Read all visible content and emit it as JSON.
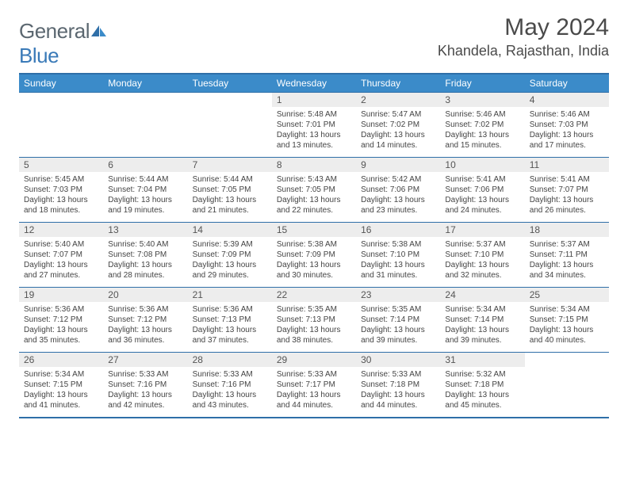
{
  "brand": {
    "part1": "General",
    "part2": "Blue"
  },
  "title": "May 2024",
  "location": "Khandela, Rajasthan, India",
  "colors": {
    "header_bg": "#3b8bc9",
    "border": "#2f6fa8",
    "daynum_bg": "#ededed",
    "text": "#333333",
    "logo_gray": "#5b6770",
    "logo_blue": "#3a7ab8"
  },
  "weekdays": [
    "Sunday",
    "Monday",
    "Tuesday",
    "Wednesday",
    "Thursday",
    "Friday",
    "Saturday"
  ],
  "weeks": [
    [
      {
        "blank": true
      },
      {
        "blank": true
      },
      {
        "blank": true
      },
      {
        "n": "1",
        "sr": "5:48 AM",
        "ss": "7:01 PM",
        "dl": "13 hours and 13 minutes."
      },
      {
        "n": "2",
        "sr": "5:47 AM",
        "ss": "7:02 PM",
        "dl": "13 hours and 14 minutes."
      },
      {
        "n": "3",
        "sr": "5:46 AM",
        "ss": "7:02 PM",
        "dl": "13 hours and 15 minutes."
      },
      {
        "n": "4",
        "sr": "5:46 AM",
        "ss": "7:03 PM",
        "dl": "13 hours and 17 minutes."
      }
    ],
    [
      {
        "n": "5",
        "sr": "5:45 AM",
        "ss": "7:03 PM",
        "dl": "13 hours and 18 minutes."
      },
      {
        "n": "6",
        "sr": "5:44 AM",
        "ss": "7:04 PM",
        "dl": "13 hours and 19 minutes."
      },
      {
        "n": "7",
        "sr": "5:44 AM",
        "ss": "7:05 PM",
        "dl": "13 hours and 21 minutes."
      },
      {
        "n": "8",
        "sr": "5:43 AM",
        "ss": "7:05 PM",
        "dl": "13 hours and 22 minutes."
      },
      {
        "n": "9",
        "sr": "5:42 AM",
        "ss": "7:06 PM",
        "dl": "13 hours and 23 minutes."
      },
      {
        "n": "10",
        "sr": "5:41 AM",
        "ss": "7:06 PM",
        "dl": "13 hours and 24 minutes."
      },
      {
        "n": "11",
        "sr": "5:41 AM",
        "ss": "7:07 PM",
        "dl": "13 hours and 26 minutes."
      }
    ],
    [
      {
        "n": "12",
        "sr": "5:40 AM",
        "ss": "7:07 PM",
        "dl": "13 hours and 27 minutes."
      },
      {
        "n": "13",
        "sr": "5:40 AM",
        "ss": "7:08 PM",
        "dl": "13 hours and 28 minutes."
      },
      {
        "n": "14",
        "sr": "5:39 AM",
        "ss": "7:09 PM",
        "dl": "13 hours and 29 minutes."
      },
      {
        "n": "15",
        "sr": "5:38 AM",
        "ss": "7:09 PM",
        "dl": "13 hours and 30 minutes."
      },
      {
        "n": "16",
        "sr": "5:38 AM",
        "ss": "7:10 PM",
        "dl": "13 hours and 31 minutes."
      },
      {
        "n": "17",
        "sr": "5:37 AM",
        "ss": "7:10 PM",
        "dl": "13 hours and 32 minutes."
      },
      {
        "n": "18",
        "sr": "5:37 AM",
        "ss": "7:11 PM",
        "dl": "13 hours and 34 minutes."
      }
    ],
    [
      {
        "n": "19",
        "sr": "5:36 AM",
        "ss": "7:12 PM",
        "dl": "13 hours and 35 minutes."
      },
      {
        "n": "20",
        "sr": "5:36 AM",
        "ss": "7:12 PM",
        "dl": "13 hours and 36 minutes."
      },
      {
        "n": "21",
        "sr": "5:36 AM",
        "ss": "7:13 PM",
        "dl": "13 hours and 37 minutes."
      },
      {
        "n": "22",
        "sr": "5:35 AM",
        "ss": "7:13 PM",
        "dl": "13 hours and 38 minutes."
      },
      {
        "n": "23",
        "sr": "5:35 AM",
        "ss": "7:14 PM",
        "dl": "13 hours and 39 minutes."
      },
      {
        "n": "24",
        "sr": "5:34 AM",
        "ss": "7:14 PM",
        "dl": "13 hours and 39 minutes."
      },
      {
        "n": "25",
        "sr": "5:34 AM",
        "ss": "7:15 PM",
        "dl": "13 hours and 40 minutes."
      }
    ],
    [
      {
        "n": "26",
        "sr": "5:34 AM",
        "ss": "7:15 PM",
        "dl": "13 hours and 41 minutes."
      },
      {
        "n": "27",
        "sr": "5:33 AM",
        "ss": "7:16 PM",
        "dl": "13 hours and 42 minutes."
      },
      {
        "n": "28",
        "sr": "5:33 AM",
        "ss": "7:16 PM",
        "dl": "13 hours and 43 minutes."
      },
      {
        "n": "29",
        "sr": "5:33 AM",
        "ss": "7:17 PM",
        "dl": "13 hours and 44 minutes."
      },
      {
        "n": "30",
        "sr": "5:33 AM",
        "ss": "7:18 PM",
        "dl": "13 hours and 44 minutes."
      },
      {
        "n": "31",
        "sr": "5:32 AM",
        "ss": "7:18 PM",
        "dl": "13 hours and 45 minutes."
      },
      {
        "blank": true
      }
    ]
  ],
  "labels": {
    "sunrise": "Sunrise:",
    "sunset": "Sunset:",
    "daylight": "Daylight:"
  }
}
